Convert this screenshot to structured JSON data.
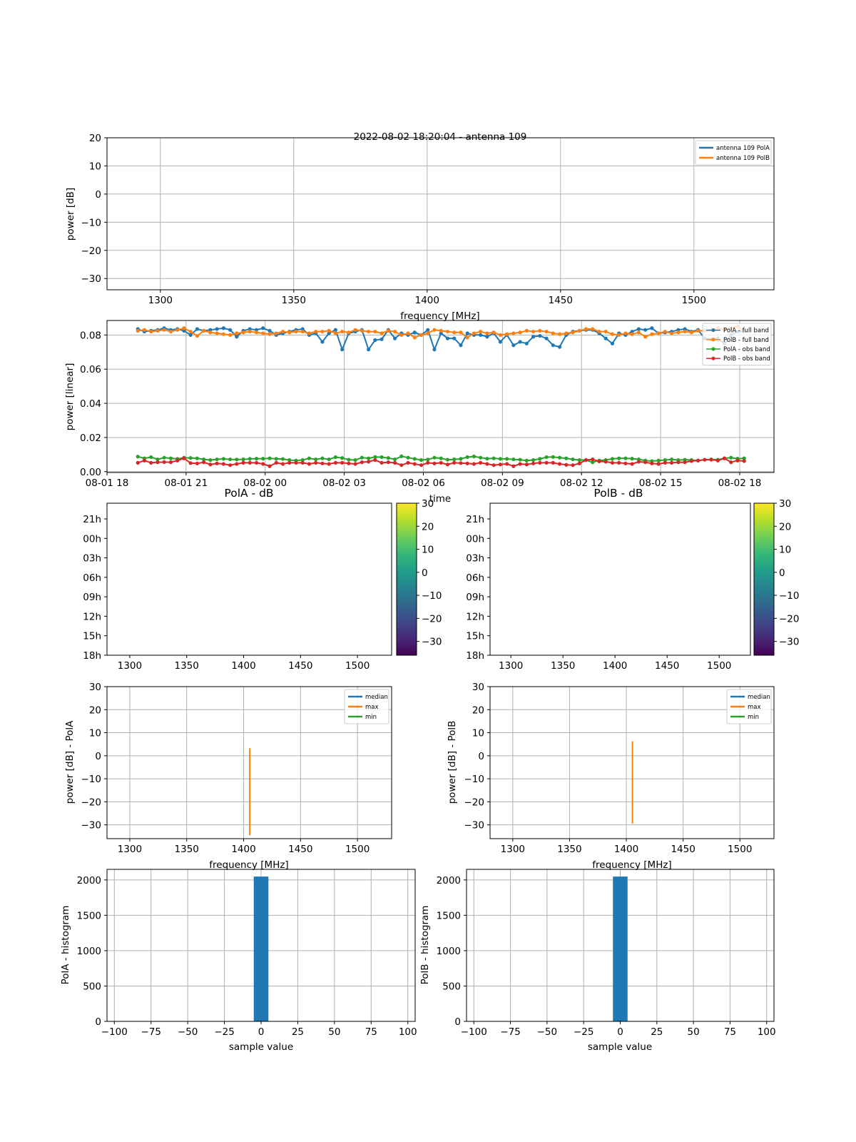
{
  "figure_title": "2022-08-02 18:20:04 - antenna 109",
  "colors": {
    "C0": "#1f77b4",
    "C1": "#ff7f0e",
    "C2": "#2ca02c",
    "C3": "#d62728",
    "grid": "#b0b0b0",
    "viridis": [
      "#440154",
      "#482878",
      "#3e4989",
      "#31688e",
      "#26828e",
      "#1f9e89",
      "#35b779",
      "#6ece58",
      "#b5de2b",
      "#fde725"
    ]
  },
  "chart_data": [
    {
      "id": "spectrum",
      "type": "line",
      "title": "",
      "xlabel": "frequency [MHz]",
      "ylabel": "power [dB]",
      "xlim": [
        1280,
        1530
      ],
      "ylim": [
        -34,
        20
      ],
      "xticks": [
        1300,
        1350,
        1400,
        1450,
        1500
      ],
      "yticks": [
        -30,
        -20,
        -10,
        0,
        10,
        20
      ],
      "ytick_labels": [
        "−30",
        "−20",
        "−10",
        "0",
        "10",
        "20"
      ],
      "grid": true,
      "legend_position": "top-right",
      "series": [
        {
          "name": "antenna 109 PolA",
          "color": "#1f77b4",
          "values": []
        },
        {
          "name": "antenna 109 PolB",
          "color": "#ff7f0e",
          "values": []
        }
      ]
    },
    {
      "id": "power_vs_time",
      "type": "line",
      "title": "",
      "xlabel": "time",
      "ylabel": "power [linear]",
      "x_units": "hours since 08-01 18:00",
      "xlim": [
        0,
        25.3
      ],
      "ylim": [
        -0.0005,
        0.0885
      ],
      "xticks": [
        0,
        3,
        6,
        9,
        12,
        15,
        18,
        21,
        24
      ],
      "xtick_labels": [
        "08-01 18",
        "08-01 21",
        "08-02 00",
        "08-02 03",
        "08-02 06",
        "08-02 09",
        "08-02 12",
        "08-02 15",
        "08-02 18"
      ],
      "yticks": [
        0,
        0.02,
        0.04,
        0.06,
        0.08
      ],
      "ytick_labels": [
        "0.00",
        "0.02",
        "0.04",
        "0.06",
        "0.08"
      ],
      "grid": true,
      "legend_position": "top-right",
      "x": [
        1.17,
        1.42,
        1.67,
        1.92,
        2.17,
        2.42,
        2.67,
        2.92,
        3.17,
        3.42,
        3.67,
        3.92,
        4.17,
        4.42,
        4.67,
        4.92,
        5.17,
        5.42,
        5.67,
        5.92,
        6.17,
        6.42,
        6.67,
        6.92,
        7.17,
        7.42,
        7.67,
        7.92,
        8.17,
        8.42,
        8.67,
        8.92,
        9.17,
        9.42,
        9.67,
        9.92,
        10.17,
        10.42,
        10.67,
        10.92,
        11.17,
        11.42,
        11.67,
        11.92,
        12.17,
        12.42,
        12.67,
        12.92,
        13.17,
        13.42,
        13.67,
        13.92,
        14.17,
        14.42,
        14.67,
        14.92,
        15.17,
        15.42,
        15.67,
        15.92,
        16.17,
        16.42,
        16.67,
        16.92,
        17.17,
        17.42,
        17.67,
        17.92,
        18.17,
        18.42,
        18.67,
        18.92,
        19.17,
        19.42,
        19.67,
        19.92,
        20.17,
        20.42,
        20.67,
        20.92,
        21.17,
        21.42,
        21.67,
        21.92,
        22.17,
        22.42,
        22.67,
        22.92,
        23.17,
        23.42,
        23.67,
        23.92,
        24.17
      ],
      "series": [
        {
          "name": "PolA - full band",
          "color": "#1f77b4",
          "values": [
            0.0835,
            0.082,
            0.0825,
            0.083,
            0.084,
            0.083,
            0.0835,
            0.0825,
            0.08,
            0.0835,
            0.0825,
            0.083,
            0.0835,
            0.084,
            0.083,
            0.079,
            0.0825,
            0.0835,
            0.083,
            0.084,
            0.0825,
            0.08,
            0.081,
            0.082,
            0.083,
            0.0835,
            0.08,
            0.081,
            0.076,
            0.081,
            0.083,
            0.0715,
            0.081,
            0.082,
            0.083,
            0.0715,
            0.077,
            0.0775,
            0.083,
            0.078,
            0.081,
            0.08,
            0.0815,
            0.08,
            0.083,
            0.0715,
            0.081,
            0.078,
            0.078,
            0.074,
            0.081,
            0.08,
            0.08,
            0.079,
            0.081,
            0.076,
            0.08,
            0.074,
            0.076,
            0.075,
            0.079,
            0.0795,
            0.078,
            0.074,
            0.073,
            0.08,
            0.082,
            0.0825,
            0.083,
            0.083,
            0.081,
            0.078,
            0.075,
            0.081,
            0.08,
            0.082,
            0.0835,
            0.083,
            0.084,
            0.081,
            0.0815,
            0.082,
            0.083,
            0.0835,
            0.082,
            0.083,
            0.078,
            0.0775,
            0.078,
            0.075,
            0.08,
            0.082,
            0.082
          ]
        },
        {
          "name": "PolB - full band",
          "color": "#ff7f0e",
          "values": [
            0.0825,
            0.083,
            0.082,
            0.0825,
            0.083,
            0.082,
            0.083,
            0.084,
            0.082,
            0.0795,
            0.0825,
            0.0815,
            0.081,
            0.0805,
            0.08,
            0.081,
            0.0815,
            0.082,
            0.0815,
            0.081,
            0.0805,
            0.081,
            0.082,
            0.0815,
            0.082,
            0.082,
            0.081,
            0.082,
            0.082,
            0.0825,
            0.081,
            0.082,
            0.0815,
            0.083,
            0.0825,
            0.082,
            0.082,
            0.081,
            0.0825,
            0.082,
            0.08,
            0.081,
            0.0785,
            0.08,
            0.081,
            0.083,
            0.0825,
            0.082,
            0.0815,
            0.0815,
            0.0785,
            0.081,
            0.082,
            0.081,
            0.0815,
            0.08,
            0.0805,
            0.081,
            0.0815,
            0.0825,
            0.082,
            0.0825,
            0.082,
            0.081,
            0.0805,
            0.081,
            0.0815,
            0.0825,
            0.0835,
            0.0835,
            0.082,
            0.082,
            0.0805,
            0.08,
            0.081,
            0.0805,
            0.0815,
            0.079,
            0.0805,
            0.081,
            0.082,
            0.081,
            0.0815,
            0.082,
            0.0815,
            0.0825,
            0.0825,
            0.083,
            0.084,
            0.083,
            0.084,
            0.085,
            0.082
          ]
        },
        {
          "name": "PolA - obs band",
          "color": "#2ca02c",
          "values": [
            0.0088,
            0.0078,
            0.0085,
            0.0072,
            0.0082,
            0.0078,
            0.0075,
            0.0082,
            0.008,
            0.0078,
            0.0072,
            0.0068,
            0.0072,
            0.0075,
            0.0072,
            0.0071,
            0.0072,
            0.0075,
            0.0076,
            0.0076,
            0.0078,
            0.0075,
            0.0074,
            0.0068,
            0.0065,
            0.0068,
            0.0078,
            0.0072,
            0.0078,
            0.0072,
            0.0085,
            0.008,
            0.007,
            0.0068,
            0.0082,
            0.0078,
            0.0086,
            0.0085,
            0.008,
            0.0072,
            0.009,
            0.0082,
            0.0075,
            0.0068,
            0.0071,
            0.0082,
            0.0078,
            0.007,
            0.0072,
            0.0075,
            0.0085,
            0.0089,
            0.0082,
            0.0076,
            0.0078,
            0.0075,
            0.0075,
            0.0072,
            0.007,
            0.0065,
            0.0068,
            0.0075,
            0.0085,
            0.0086,
            0.0082,
            0.0078,
            0.0072,
            0.0068,
            0.0068,
            0.0055,
            0.0065,
            0.0068,
            0.0075,
            0.0078,
            0.0078,
            0.0076,
            0.0072,
            0.0065,
            0.0062,
            0.0065,
            0.0068,
            0.0072,
            0.0068,
            0.007,
            0.0068,
            0.0065,
            0.007,
            0.0072,
            0.007,
            0.0078,
            0.0082,
            0.0076,
            0.0078
          ]
        },
        {
          "name": "PolB - obs band",
          "color": "#d62728",
          "values": [
            0.0052,
            0.0065,
            0.0052,
            0.0055,
            0.0056,
            0.0055,
            0.0065,
            0.0078,
            0.005,
            0.0048,
            0.0055,
            0.0042,
            0.0048,
            0.0045,
            0.0038,
            0.0045,
            0.0052,
            0.0052,
            0.0052,
            0.0045,
            0.0032,
            0.0052,
            0.0045,
            0.0052,
            0.0052,
            0.0052,
            0.0045,
            0.0052,
            0.0048,
            0.0045,
            0.0052,
            0.0052,
            0.0048,
            0.0045,
            0.0055,
            0.0058,
            0.0068,
            0.0052,
            0.0055,
            0.0052,
            0.0038,
            0.0052,
            0.0045,
            0.0038,
            0.0052,
            0.0048,
            0.0052,
            0.0042,
            0.0052,
            0.005,
            0.0048,
            0.0045,
            0.0052,
            0.0045,
            0.0038,
            0.0042,
            0.0045,
            0.0032,
            0.0045,
            0.0042,
            0.0048,
            0.0052,
            0.0052,
            0.0052,
            0.0045,
            0.004,
            0.0038,
            0.0048,
            0.0068,
            0.0072,
            0.006,
            0.0058,
            0.0052,
            0.0052,
            0.0048,
            0.0045,
            0.0058,
            0.0055,
            0.0048,
            0.0045,
            0.0052,
            0.0052,
            0.0055,
            0.0055,
            0.0062,
            0.0065,
            0.007,
            0.007,
            0.0065,
            0.0078,
            0.0055,
            0.0065,
            0.0062
          ]
        }
      ]
    },
    {
      "id": "waterfall_pola",
      "type": "heatmap",
      "title": "PolA - dB",
      "xlim": [
        1280,
        1530
      ],
      "xticks": [
        1300,
        1350,
        1400,
        1450,
        1500
      ],
      "ytick_labels": [
        "21h",
        "00h",
        "03h",
        "06h",
        "09h",
        "12h",
        "15h",
        "18h"
      ],
      "colorbar_range": [
        -36,
        30
      ],
      "colorbar_ticks": [
        -30,
        -20,
        -10,
        0,
        10,
        20,
        30
      ],
      "colorbar_tick_labels": [
        "−30",
        "−20",
        "−10",
        "0",
        "10",
        "20",
        "30"
      ],
      "colormap": "viridis",
      "values": []
    },
    {
      "id": "waterfall_polb",
      "type": "heatmap",
      "title": "PolB - dB",
      "xlim": [
        1280,
        1530
      ],
      "xticks": [
        1300,
        1350,
        1400,
        1450,
        1500
      ],
      "ytick_labels": [
        "21h",
        "00h",
        "03h",
        "06h",
        "09h",
        "12h",
        "15h",
        "18h"
      ],
      "colorbar_range": [
        -36,
        30
      ],
      "colorbar_ticks": [
        -30,
        -20,
        -10,
        0,
        10,
        20,
        30
      ],
      "colorbar_tick_labels": [
        "−30",
        "−20",
        "−10",
        "0",
        "10",
        "20",
        "30"
      ],
      "colormap": "viridis",
      "values": []
    },
    {
      "id": "stats_pola",
      "type": "line",
      "title": "",
      "xlabel": "frequency [MHz]",
      "ylabel": "power [dB] - PolA",
      "xlim": [
        1280,
        1530
      ],
      "ylim": [
        -36,
        30
      ],
      "xticks": [
        1300,
        1350,
        1400,
        1450,
        1500
      ],
      "yticks": [
        -30,
        -20,
        -10,
        0,
        10,
        20,
        30
      ],
      "ytick_labels": [
        "−30",
        "−20",
        "−10",
        "0",
        "10",
        "20",
        "30"
      ],
      "grid": true,
      "legend_position": "top-right",
      "series": [
        {
          "name": "median",
          "color": "#1f77b4",
          "x": [],
          "values": []
        },
        {
          "name": "max",
          "color": "#ff7f0e",
          "x": [
            1405.4,
            1405.4
          ],
          "values": [
            -34.5,
            3.3
          ]
        },
        {
          "name": "min",
          "color": "#2ca02c",
          "x": [],
          "values": []
        }
      ]
    },
    {
      "id": "stats_polb",
      "type": "line",
      "title": "",
      "xlabel": "frequency [MHz]",
      "ylabel": "power [dB] - PolB",
      "xlim": [
        1280,
        1530
      ],
      "ylim": [
        -36,
        30
      ],
      "xticks": [
        1300,
        1350,
        1400,
        1450,
        1500
      ],
      "yticks": [
        -30,
        -20,
        -10,
        0,
        10,
        20,
        30
      ],
      "ytick_labels": [
        "−30",
        "−20",
        "−10",
        "0",
        "10",
        "20",
        "30"
      ],
      "grid": true,
      "legend_position": "top-right",
      "series": [
        {
          "name": "median",
          "color": "#1f77b4",
          "x": [],
          "values": []
        },
        {
          "name": "max",
          "color": "#ff7f0e",
          "x": [
            1405.4,
            1405.4
          ],
          "values": [
            -29.5,
            6.3
          ]
        },
        {
          "name": "min",
          "color": "#2ca02c",
          "x": [],
          "values": []
        }
      ]
    },
    {
      "id": "hist_pola",
      "type": "bar",
      "title": "",
      "xlabel": "sample value",
      "ylabel": "PolA - histogram",
      "xlim": [
        -105,
        105
      ],
      "ylim": [
        0,
        2150
      ],
      "xticks": [
        -100,
        -75,
        -50,
        -25,
        0,
        25,
        50,
        75,
        100
      ],
      "xtick_labels": [
        "−100",
        "−75",
        "−50",
        "−25",
        "0",
        "25",
        "50",
        "75",
        "100"
      ],
      "yticks": [
        0,
        500,
        1000,
        1500,
        2000
      ],
      "grid": true,
      "color": "#1f77b4",
      "bins": [
        {
          "x0": -5,
          "x1": 5,
          "count": 2048
        }
      ]
    },
    {
      "id": "hist_polb",
      "type": "bar",
      "title": "",
      "xlabel": "sample value",
      "ylabel": "PolB - histogram",
      "xlim": [
        -105,
        105
      ],
      "ylim": [
        0,
        2150
      ],
      "xticks": [
        -100,
        -75,
        -50,
        -25,
        0,
        25,
        50,
        75,
        100
      ],
      "xtick_labels": [
        "−100",
        "−75",
        "−50",
        "−25",
        "0",
        "25",
        "50",
        "75",
        "100"
      ],
      "yticks": [
        0,
        500,
        1000,
        1500,
        2000
      ],
      "grid": true,
      "color": "#1f77b4",
      "bins": [
        {
          "x0": -5,
          "x1": 5,
          "count": 2048
        }
      ]
    }
  ]
}
